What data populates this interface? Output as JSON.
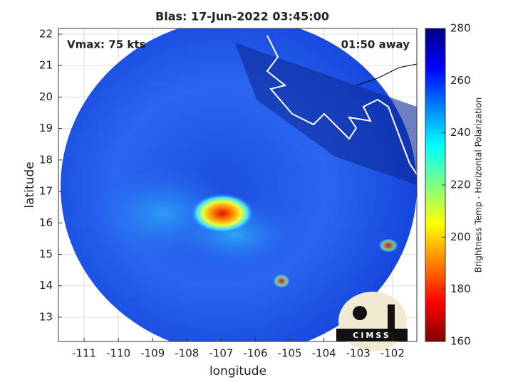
{
  "chart_data": {
    "type": "image",
    "title": "Blas: 17-Jun-2022 03:45:00",
    "xlabel": "longitude",
    "ylabel": "latitude",
    "annotations": [
      "Vmax: 75 kts",
      "01:50 away"
    ],
    "logo_text": "CIMSS",
    "xlim": [
      -111.75,
      -101.29
    ],
    "ylim": [
      12.23,
      22.18
    ],
    "xticks": [
      -111,
      -110,
      -109,
      -108,
      -107,
      -106,
      -105,
      -104,
      -103,
      -102
    ],
    "yticks": [
      13,
      14,
      15,
      16,
      17,
      18,
      19,
      20,
      21,
      22
    ],
    "grid": true,
    "colorbar": {
      "label": "Brightness Temp - Horizontal Polarization",
      "lim": [
        160,
        280
      ],
      "ticks": [
        160,
        180,
        200,
        220,
        240,
        260,
        280
      ],
      "colormap": [
        "#800000",
        "#ff0000",
        "#ff8000",
        "#ffff00",
        "#80ff80",
        "#00ffff",
        "#0080ff",
        "#0000ff",
        "#000080"
      ]
    }
  }
}
